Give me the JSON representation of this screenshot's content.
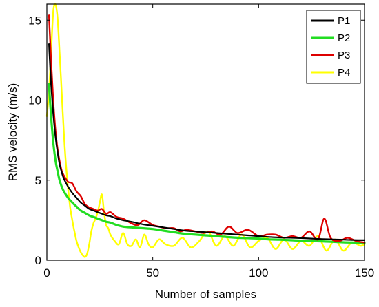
{
  "chart_data": {
    "type": "line",
    "title": "",
    "xlabel": "Number of samples",
    "ylabel": "RMS velocity (m/s)",
    "xlim": [
      0,
      150
    ],
    "ylim": [
      0,
      16
    ],
    "xticks": [
      0,
      50,
      100,
      150
    ],
    "yticks": [
      0,
      5,
      10,
      15
    ],
    "grid": false,
    "legend_position": "top-right",
    "series": [
      {
        "name": "P1",
        "color": "#000000",
        "x": [
          1,
          2,
          3,
          4,
          5,
          6,
          7,
          8,
          10,
          12,
          14,
          16,
          18,
          20,
          22,
          24,
          26,
          28,
          30,
          33,
          36,
          40,
          45,
          50,
          55,
          60,
          65,
          70,
          75,
          80,
          85,
          90,
          95,
          100,
          105,
          110,
          115,
          120,
          125,
          130,
          135,
          140,
          145,
          150
        ],
        "y": [
          13.5,
          11.0,
          9.2,
          7.8,
          6.8,
          6.0,
          5.5,
          5.1,
          4.6,
          4.2,
          3.9,
          3.6,
          3.4,
          3.2,
          3.1,
          3.0,
          2.9,
          2.8,
          2.75,
          2.6,
          2.5,
          2.4,
          2.25,
          2.15,
          2.05,
          1.95,
          1.85,
          1.8,
          1.75,
          1.7,
          1.65,
          1.6,
          1.55,
          1.5,
          1.45,
          1.42,
          1.4,
          1.38,
          1.35,
          1.32,
          1.3,
          1.28,
          1.26,
          1.25
        ]
      },
      {
        "name": "P2",
        "color": "#22dd22",
        "x": [
          1,
          2,
          3,
          4,
          5,
          6,
          7,
          8,
          10,
          12,
          14,
          16,
          18,
          20,
          22,
          24,
          26,
          28,
          30,
          33,
          36,
          40,
          45,
          50,
          55,
          60,
          65,
          70,
          75,
          80,
          85,
          90,
          95,
          100,
          105,
          110,
          115,
          120,
          125,
          130,
          135,
          140,
          145,
          150
        ],
        "y": [
          11.0,
          9.0,
          7.4,
          6.3,
          5.6,
          5.0,
          4.6,
          4.3,
          3.9,
          3.6,
          3.35,
          3.1,
          2.95,
          2.8,
          2.7,
          2.6,
          2.5,
          2.4,
          2.35,
          2.2,
          2.1,
          2.05,
          2.0,
          1.95,
          1.85,
          1.75,
          1.65,
          1.6,
          1.55,
          1.5,
          1.45,
          1.4,
          1.38,
          1.35,
          1.3,
          1.28,
          1.25,
          1.22,
          1.2,
          1.18,
          1.15,
          1.12,
          1.1,
          1.08
        ]
      },
      {
        "name": "P3",
        "color": "#dd0000",
        "x": [
          1,
          2,
          3,
          4,
          5,
          6,
          7,
          8,
          10,
          12,
          14,
          16,
          18,
          20,
          22,
          24,
          26,
          28,
          30,
          33,
          36,
          40,
          43,
          46,
          50,
          53,
          56,
          60,
          63,
          66,
          70,
          74,
          78,
          82,
          86,
          90,
          95,
          100,
          104,
          108,
          112,
          116,
          120,
          124,
          128,
          131,
          134,
          138,
          142,
          146,
          150
        ],
        "y": [
          15.3,
          12.5,
          10.0,
          8.2,
          7.0,
          6.2,
          5.6,
          5.3,
          4.9,
          4.8,
          4.3,
          4.0,
          3.5,
          3.3,
          3.2,
          3.1,
          3.2,
          2.9,
          3.0,
          2.7,
          2.6,
          2.3,
          2.2,
          2.5,
          2.2,
          2.1,
          2.0,
          2.0,
          1.8,
          1.9,
          1.8,
          1.7,
          1.8,
          1.6,
          2.1,
          1.7,
          1.9,
          1.5,
          1.6,
          1.6,
          1.4,
          1.5,
          1.4,
          1.8,
          1.3,
          2.6,
          1.4,
          1.2,
          1.4,
          1.2,
          1.1
        ]
      },
      {
        "name": "P4",
        "color": "#ffff00",
        "x": [
          0,
          1,
          2,
          3,
          4,
          5,
          6,
          7,
          8,
          9,
          10,
          11,
          12,
          13,
          14,
          15,
          16,
          17,
          18,
          19,
          20,
          21,
          22,
          23,
          24,
          25,
          26,
          27,
          28,
          29,
          30,
          32,
          34,
          36,
          38,
          40,
          42,
          44,
          46,
          48,
          50,
          53,
          56,
          60,
          64,
          68,
          72,
          76,
          80,
          84,
          88,
          92,
          96,
          100,
          104,
          108,
          112,
          116,
          120,
          124,
          128,
          132,
          136,
          140,
          144,
          148,
          150
        ],
        "y": [
          9.0,
          10.5,
          13.0,
          15.5,
          16.0,
          15.2,
          13.0,
          10.5,
          8.0,
          6.0,
          4.5,
          3.3,
          2.5,
          1.8,
          1.2,
          0.8,
          0.5,
          0.3,
          0.2,
          0.4,
          1.0,
          1.8,
          2.3,
          2.6,
          3.0,
          3.6,
          4.1,
          3.0,
          2.2,
          2.0,
          1.6,
          1.2,
          1.0,
          1.7,
          1.0,
          0.9,
          1.3,
          0.8,
          1.6,
          1.0,
          0.8,
          1.3,
          1.0,
          0.9,
          1.4,
          0.8,
          1.2,
          1.8,
          0.9,
          1.5,
          0.9,
          1.6,
          0.8,
          1.2,
          1.4,
          0.7,
          1.3,
          0.7,
          1.2,
          0.9,
          1.5,
          0.6,
          1.3,
          0.6,
          1.1,
          0.9,
          1.0
        ]
      }
    ]
  }
}
